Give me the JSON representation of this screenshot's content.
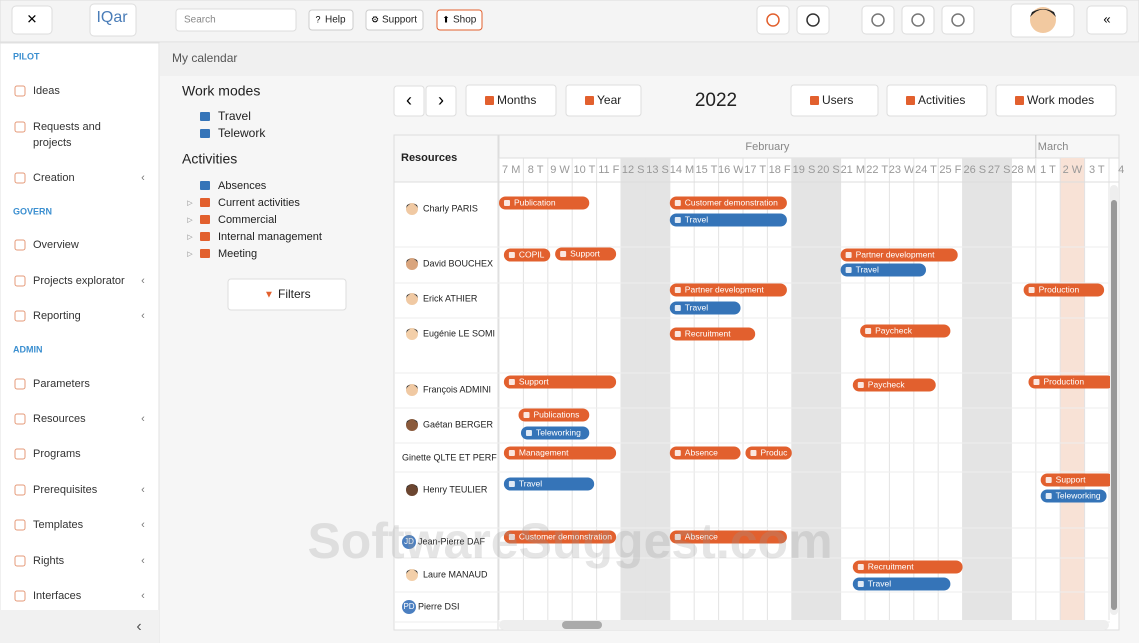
{
  "logo": "IQar",
  "topbar": {
    "search_placeholder": "Search",
    "buttons": [
      "Help",
      "Support",
      "Shop"
    ]
  },
  "sidebar": {
    "sections": [
      {
        "title": "PILOT",
        "items": [
          "Ideas",
          "Requests and projects",
          "Creation"
        ]
      },
      {
        "title": "GOVERN",
        "items": [
          "Overview",
          "Projects explorator",
          "Reporting"
        ]
      },
      {
        "title": "ADMIN",
        "items": [
          "Parameters",
          "Resources",
          "Programs",
          "Prerequisites",
          "Templates",
          "Rights",
          "Interfaces"
        ]
      }
    ]
  },
  "breadcrumb": "My calendar",
  "filters_panel": {
    "work_modes": {
      "title": "Work modes",
      "items": [
        "Travel",
        "Telework"
      ]
    },
    "activities": {
      "title": "Activities",
      "items": [
        "Absences",
        "Current activities",
        "Commercial",
        "Internal management",
        "Meeting"
      ]
    },
    "filter_button": "Filters"
  },
  "toolbar": {
    "left_buttons": [
      "Months",
      "Year"
    ],
    "year": "2022",
    "right_buttons": [
      "Users",
      "Activities",
      "Work modes"
    ]
  },
  "calendar": {
    "resources_header": "Resources",
    "months": [
      "February",
      "March"
    ],
    "days": [
      "7 M",
      "8 T",
      "9 W",
      "10 T",
      "11 F",
      "12 S",
      "13 S",
      "14 M",
      "15 T",
      "16 W",
      "17 T",
      "18 F",
      "19 S",
      "20 S",
      "21 M",
      "22 T",
      "23 W",
      "24 T",
      "25 F",
      "26 S",
      "27 S",
      "28 M",
      "1 T",
      "2 W",
      "3 T",
      "4"
    ],
    "colors": {
      "activity": "#e2602e",
      "work_mode": "#3574b8"
    },
    "rows": [
      {
        "name": "Charly PARIS",
        "events": [
          {
            "label": "Publication",
            "kind": "activity"
          },
          {
            "label": "Customer demonstration",
            "kind": "activity"
          },
          {
            "label": "Travel",
            "kind": "work_mode"
          }
        ]
      },
      {
        "name": "David BOUCHEX",
        "events": [
          {
            "label": "COPIL",
            "kind": "activity"
          },
          {
            "label": "Support",
            "kind": "activity"
          },
          {
            "label": "Partner development",
            "kind": "activity"
          },
          {
            "label": "Travel",
            "kind": "work_mode"
          }
        ]
      },
      {
        "name": "Erick ATHIER",
        "events": [
          {
            "label": "Partner development",
            "kind": "activity"
          },
          {
            "label": "Travel",
            "kind": "work_mode"
          },
          {
            "label": "Production",
            "kind": "activity"
          }
        ]
      },
      {
        "name": "Eugénie LE SOMI",
        "events": [
          {
            "label": "Recruitment",
            "kind": "activity"
          },
          {
            "label": "Paycheck",
            "kind": "activity"
          }
        ]
      },
      {
        "name": "François ADMINI",
        "events": [
          {
            "label": "Support",
            "kind": "activity"
          },
          {
            "label": "Paycheck",
            "kind": "activity"
          },
          {
            "label": "Production",
            "kind": "activity"
          }
        ]
      },
      {
        "name": "Gaétan BERGER",
        "events": [
          {
            "label": "Publications",
            "kind": "activity"
          },
          {
            "label": "Teleworking",
            "kind": "work_mode"
          }
        ]
      },
      {
        "name": "Ginette QLTE ET PERF",
        "events": [
          {
            "label": "Management",
            "kind": "activity"
          },
          {
            "label": "Absence",
            "kind": "activity"
          },
          {
            "label": "Produc",
            "kind": "activity"
          }
        ]
      },
      {
        "name": "Henry TEULIER",
        "events": [
          {
            "label": "Travel",
            "kind": "work_mode"
          },
          {
            "label": "Support",
            "kind": "activity"
          },
          {
            "label": "Teleworking",
            "kind": "work_mode"
          }
        ]
      },
      {
        "name": "Jean-Pierre DAF",
        "initials": "JD",
        "events": [
          {
            "label": "Customer demonstration",
            "kind": "activity"
          },
          {
            "label": "Absence",
            "kind": "activity"
          }
        ]
      },
      {
        "name": "Laure MANAUD",
        "events": [
          {
            "label": "Recruitment",
            "kind": "activity"
          },
          {
            "label": "Travel",
            "kind": "work_mode"
          }
        ]
      },
      {
        "name": "Pierre DSI",
        "initials": "PD",
        "events": []
      }
    ]
  },
  "watermark": "SoftwareSuggest.com"
}
